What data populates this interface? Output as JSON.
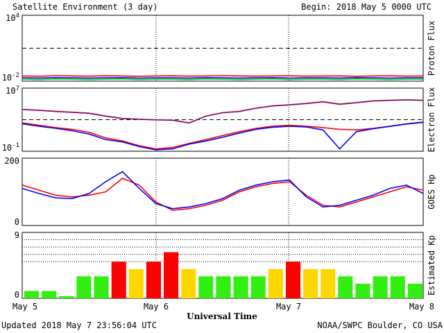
{
  "header": {
    "title": "Satellite Environment (3 day)",
    "begin": "Begin:  2018 May 5 0000 UTC"
  },
  "footer": {
    "updated": "Updated 2018 May  7 23:56:04 UTC",
    "credit": "NOAA/SWPC Boulder, CO USA"
  },
  "colors": {
    "red": "#ff0000",
    "blue": "#0000ff",
    "green": "#00e000",
    "orange": "#ffa500",
    "purple": "#800080",
    "kp_green": "#33ee11",
    "kp_yellow": "#ffd700",
    "kp_red": "#ff0000"
  },
  "chart_data": [
    {
      "type": "line",
      "id": "proton",
      "ylabel": "Proton Flux",
      "scale": "log",
      "ylim": [
        0.01,
        10000
      ],
      "ytick_labels": [
        {
          "base": "10",
          "exp": "4",
          "value": 10000
        },
        {
          "base": "10",
          "exp": "-2",
          "value": 0.01
        }
      ],
      "threshold": 10,
      "series": [
        {
          "color": "red",
          "values": [
            0.03,
            0.028,
            0.032,
            0.03,
            0.029,
            0.031,
            0.03,
            0.028,
            0.03,
            0.031,
            0.029,
            0.03,
            0.032,
            0.03,
            0.029,
            0.03,
            0.031,
            0.029,
            0.03,
            0.03,
            0.028,
            0.03,
            0.031,
            0.029,
            0.03
          ]
        },
        {
          "color": "blue",
          "values": [
            0.02,
            0.019,
            0.021,
            0.02,
            0.019,
            0.02,
            0.021,
            0.019,
            0.02,
            0.02,
            0.019,
            0.021,
            0.02,
            0.019,
            0.02,
            0.021,
            0.019,
            0.02,
            0.02,
            0.019,
            0.021,
            0.02,
            0.019,
            0.02,
            0.02
          ]
        },
        {
          "color": "green",
          "values": [
            0.015,
            0.014,
            0.016,
            0.015,
            0.014,
            0.015,
            0.016,
            0.014,
            0.015,
            0.015,
            0.014,
            0.016,
            0.015,
            0.014,
            0.015,
            0.016,
            0.014,
            0.015,
            0.015,
            0.014,
            0.016,
            0.015,
            0.014,
            0.015,
            0.015
          ]
        }
      ]
    },
    {
      "type": "line",
      "id": "electron",
      "ylabel": "Electron Flux",
      "scale": "log",
      "ylim": [
        0.1,
        10000000
      ],
      "ytick_labels": [
        {
          "base": "10",
          "exp": "7",
          "value": 10000000
        },
        {
          "base": "10",
          "exp": "-1",
          "value": 0.1
        }
      ],
      "threshold": 1000,
      "series": [
        {
          "color": "orange",
          "values": [
            20000,
            16000,
            12000,
            9000,
            7000,
            3000,
            1500,
            1200,
            1000,
            900,
            400,
            3000,
            8000,
            12000,
            30000,
            60000,
            80000,
            120000,
            200000,
            100000,
            150000,
            250000,
            300000,
            350000,
            300000
          ]
        },
        {
          "color": "purple",
          "values": [
            20000,
            15000,
            11000,
            8500,
            6500,
            2800,
            1400,
            1100,
            950,
            850,
            380,
            2800,
            7500,
            11000,
            28000,
            55000,
            75000,
            110000,
            180000,
            90000,
            140000,
            230000,
            280000,
            320000,
            280000
          ]
        },
        {
          "color": "red",
          "values": [
            400,
            200,
            100,
            60,
            25,
            5,
            2,
            0.5,
            0.2,
            0.3,
            1,
            3,
            10,
            30,
            80,
            150,
            200,
            150,
            100,
            60,
            50,
            80,
            150,
            300,
            500
          ]
        },
        {
          "color": "blue",
          "values": [
            300,
            150,
            80,
            40,
            15,
            3,
            1.5,
            0.4,
            0.15,
            0.2,
            0.8,
            2,
            6,
            20,
            60,
            110,
            150,
            120,
            50,
            0.2,
            30,
            70,
            140,
            280,
            450
          ]
        }
      ]
    },
    {
      "type": "line",
      "id": "hp",
      "ylabel": "GOES Hp",
      "scale": "linear",
      "ylim": [
        0,
        200
      ],
      "ytick_labels": [
        {
          "base": "200",
          "value": 200
        },
        {
          "base": "0",
          "value": 0
        }
      ],
      "series": [
        {
          "color": "red",
          "values": [
            120,
            105,
            90,
            85,
            90,
            100,
            140,
            120,
            70,
            45,
            50,
            60,
            75,
            100,
            115,
            125,
            130,
            90,
            60,
            55,
            70,
            85,
            100,
            115,
            105
          ]
        },
        {
          "color": "blue",
          "values": [
            110,
            95,
            82,
            80,
            95,
            130,
            160,
            110,
            65,
            50,
            55,
            65,
            80,
            105,
            120,
            130,
            135,
            85,
            55,
            60,
            75,
            90,
            110,
            120,
            95
          ]
        }
      ]
    },
    {
      "type": "bar",
      "id": "kp",
      "ylabel": "Estimated Kp",
      "ylim": [
        0,
        9
      ],
      "ytick_labels": [
        {
          "base": "9",
          "value": 9
        },
        {
          "base": "0",
          "value": 0
        }
      ],
      "dotted_levels": [
        5,
        6,
        7,
        8
      ],
      "values": [
        1,
        1,
        0.3,
        3,
        3,
        5,
        4,
        5,
        6.3,
        4,
        3,
        3,
        3,
        3,
        4,
        5,
        4,
        4,
        3,
        2,
        3,
        3,
        2
      ],
      "colors": [
        "kp_green",
        "kp_green",
        "kp_green",
        "kp_green",
        "kp_green",
        "kp_red",
        "kp_yellow",
        "kp_red",
        "kp_red",
        "kp_yellow",
        "kp_green",
        "kp_green",
        "kp_green",
        "kp_green",
        "kp_yellow",
        "kp_red",
        "kp_yellow",
        "kp_yellow",
        "kp_green",
        "kp_green",
        "kp_green",
        "kp_green",
        "kp_green"
      ]
    }
  ],
  "x_axis": {
    "label": "Universal Time",
    "ticks": [
      "May 5",
      "May 6",
      "May 7",
      "May 8"
    ]
  }
}
